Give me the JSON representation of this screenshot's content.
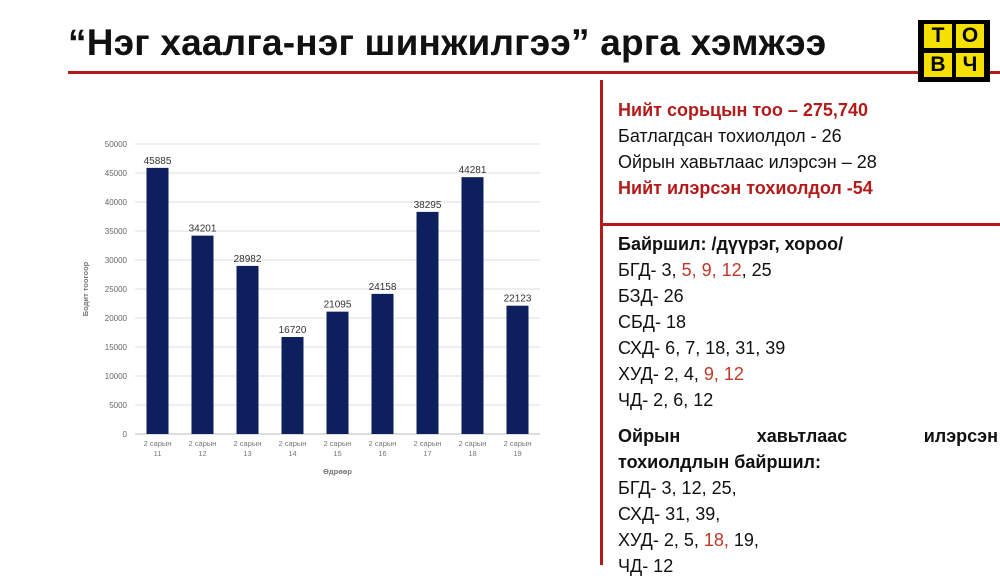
{
  "slide": {
    "title": "“Нэг хаалга-нэг шинжилгээ” арга хэмжээ"
  },
  "logo": {
    "letters": [
      "Т",
      "О",
      "В",
      "Ч"
    ],
    "bg_color": "#f6e000"
  },
  "stats": {
    "total_samples": "Нийт сорьцын тоо –  275,740",
    "confirmed_cases": "Батлагдсан тохиолдол -  26",
    "contact_detected": "Ойрын хавьтлаас илэрсэн – 28",
    "total_detected": "Нийт илэрсэн тохиолдол -54"
  },
  "location": {
    "heading": "Байршил: /дүүрэг, хороо/",
    "bgd": {
      "prefix": "БГД- 3, ",
      "red": "5, 9, 12",
      "suffix": ", 25"
    },
    "bzd": "БЗД- 26",
    "sbd": "СБД- 18",
    "skhd": "СХД- 6, 7, 18, 31, 39",
    "khud": {
      "prefix": "ХУД- 2, 4, ",
      "red": "9, 12"
    },
    "chd": "ЧД- 2, 6, 12"
  },
  "contact_location": {
    "heading_words": [
      "Ойрын",
      "хавьтлаас",
      "илэрсэн"
    ],
    "heading_line2": "тохиолдлын байршил:",
    "bgd": "БГД- 3, 12, 25,",
    "skhd": "СХД- 31, 39,",
    "khud": {
      "prefix": "ХУД- 2, 5, ",
      "red": "18,",
      "suffix": " 19,"
    },
    "chd": "ЧД- 12"
  },
  "colors": {
    "accent_red": "#b31b1b",
    "bar_color": "#0d1f5c"
  },
  "chart_data": {
    "type": "bar",
    "categories": [
      [
        "2 сарын",
        "11"
      ],
      [
        "2 сарын",
        "12"
      ],
      [
        "2 сарын",
        "13"
      ],
      [
        "2 сарын",
        "14"
      ],
      [
        "2 сарын",
        "15"
      ],
      [
        "2 сарын",
        "16"
      ],
      [
        "2 сарын",
        "17"
      ],
      [
        "2 сарын",
        "18"
      ],
      [
        "2 сарын",
        "19"
      ]
    ],
    "values": [
      45885,
      34201,
      28982,
      16720,
      21095,
      24158,
      38295,
      44281,
      22123
    ],
    "xlabel": "Өдрөөр",
    "ylabel": "Бодит тоогоор",
    "ylim": [
      0,
      50000
    ],
    "yticks": [
      0,
      5000,
      10000,
      15000,
      20000,
      25000,
      30000,
      35000,
      40000,
      45000,
      50000
    ],
    "grid": true,
    "data_labels": true
  }
}
